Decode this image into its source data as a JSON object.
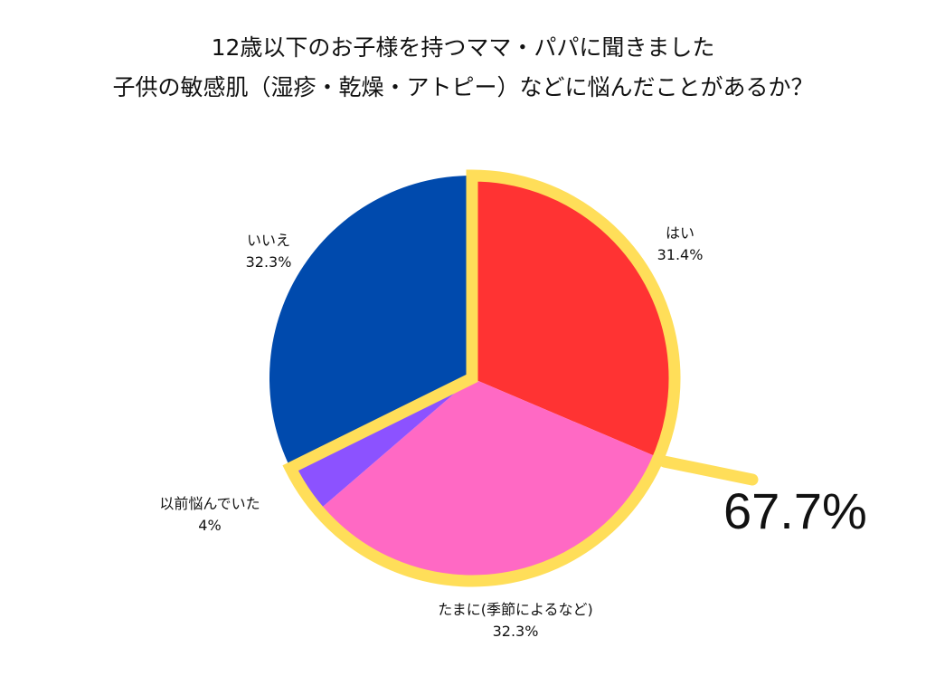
{
  "chart_data": {
    "type": "pie",
    "title_line1": "12歳以下のお子様を持つママ・パパに聞きました",
    "title_line2": "子供の敏感肌（湿疹・乾燥・アトピー）などに悩んだことがあるか？",
    "slices": [
      {
        "label": "はい",
        "value": 31.4,
        "value_text": "31.4%",
        "color": "#ff3333"
      },
      {
        "label": "たまに(季節によるなど)",
        "value": 32.3,
        "value_text": "32.3%",
        "color": "#ff69c4"
      },
      {
        "label": "以前悩んでいた",
        "value": 4,
        "value_text": "4%",
        "color": "#8c52ff"
      },
      {
        "label": "いいえ",
        "value": 32.3,
        "value_text": "32.3%",
        "color": "#004aad"
      }
    ],
    "highlight": {
      "value_text": "67.7%",
      "color": "#ffde59"
    }
  }
}
